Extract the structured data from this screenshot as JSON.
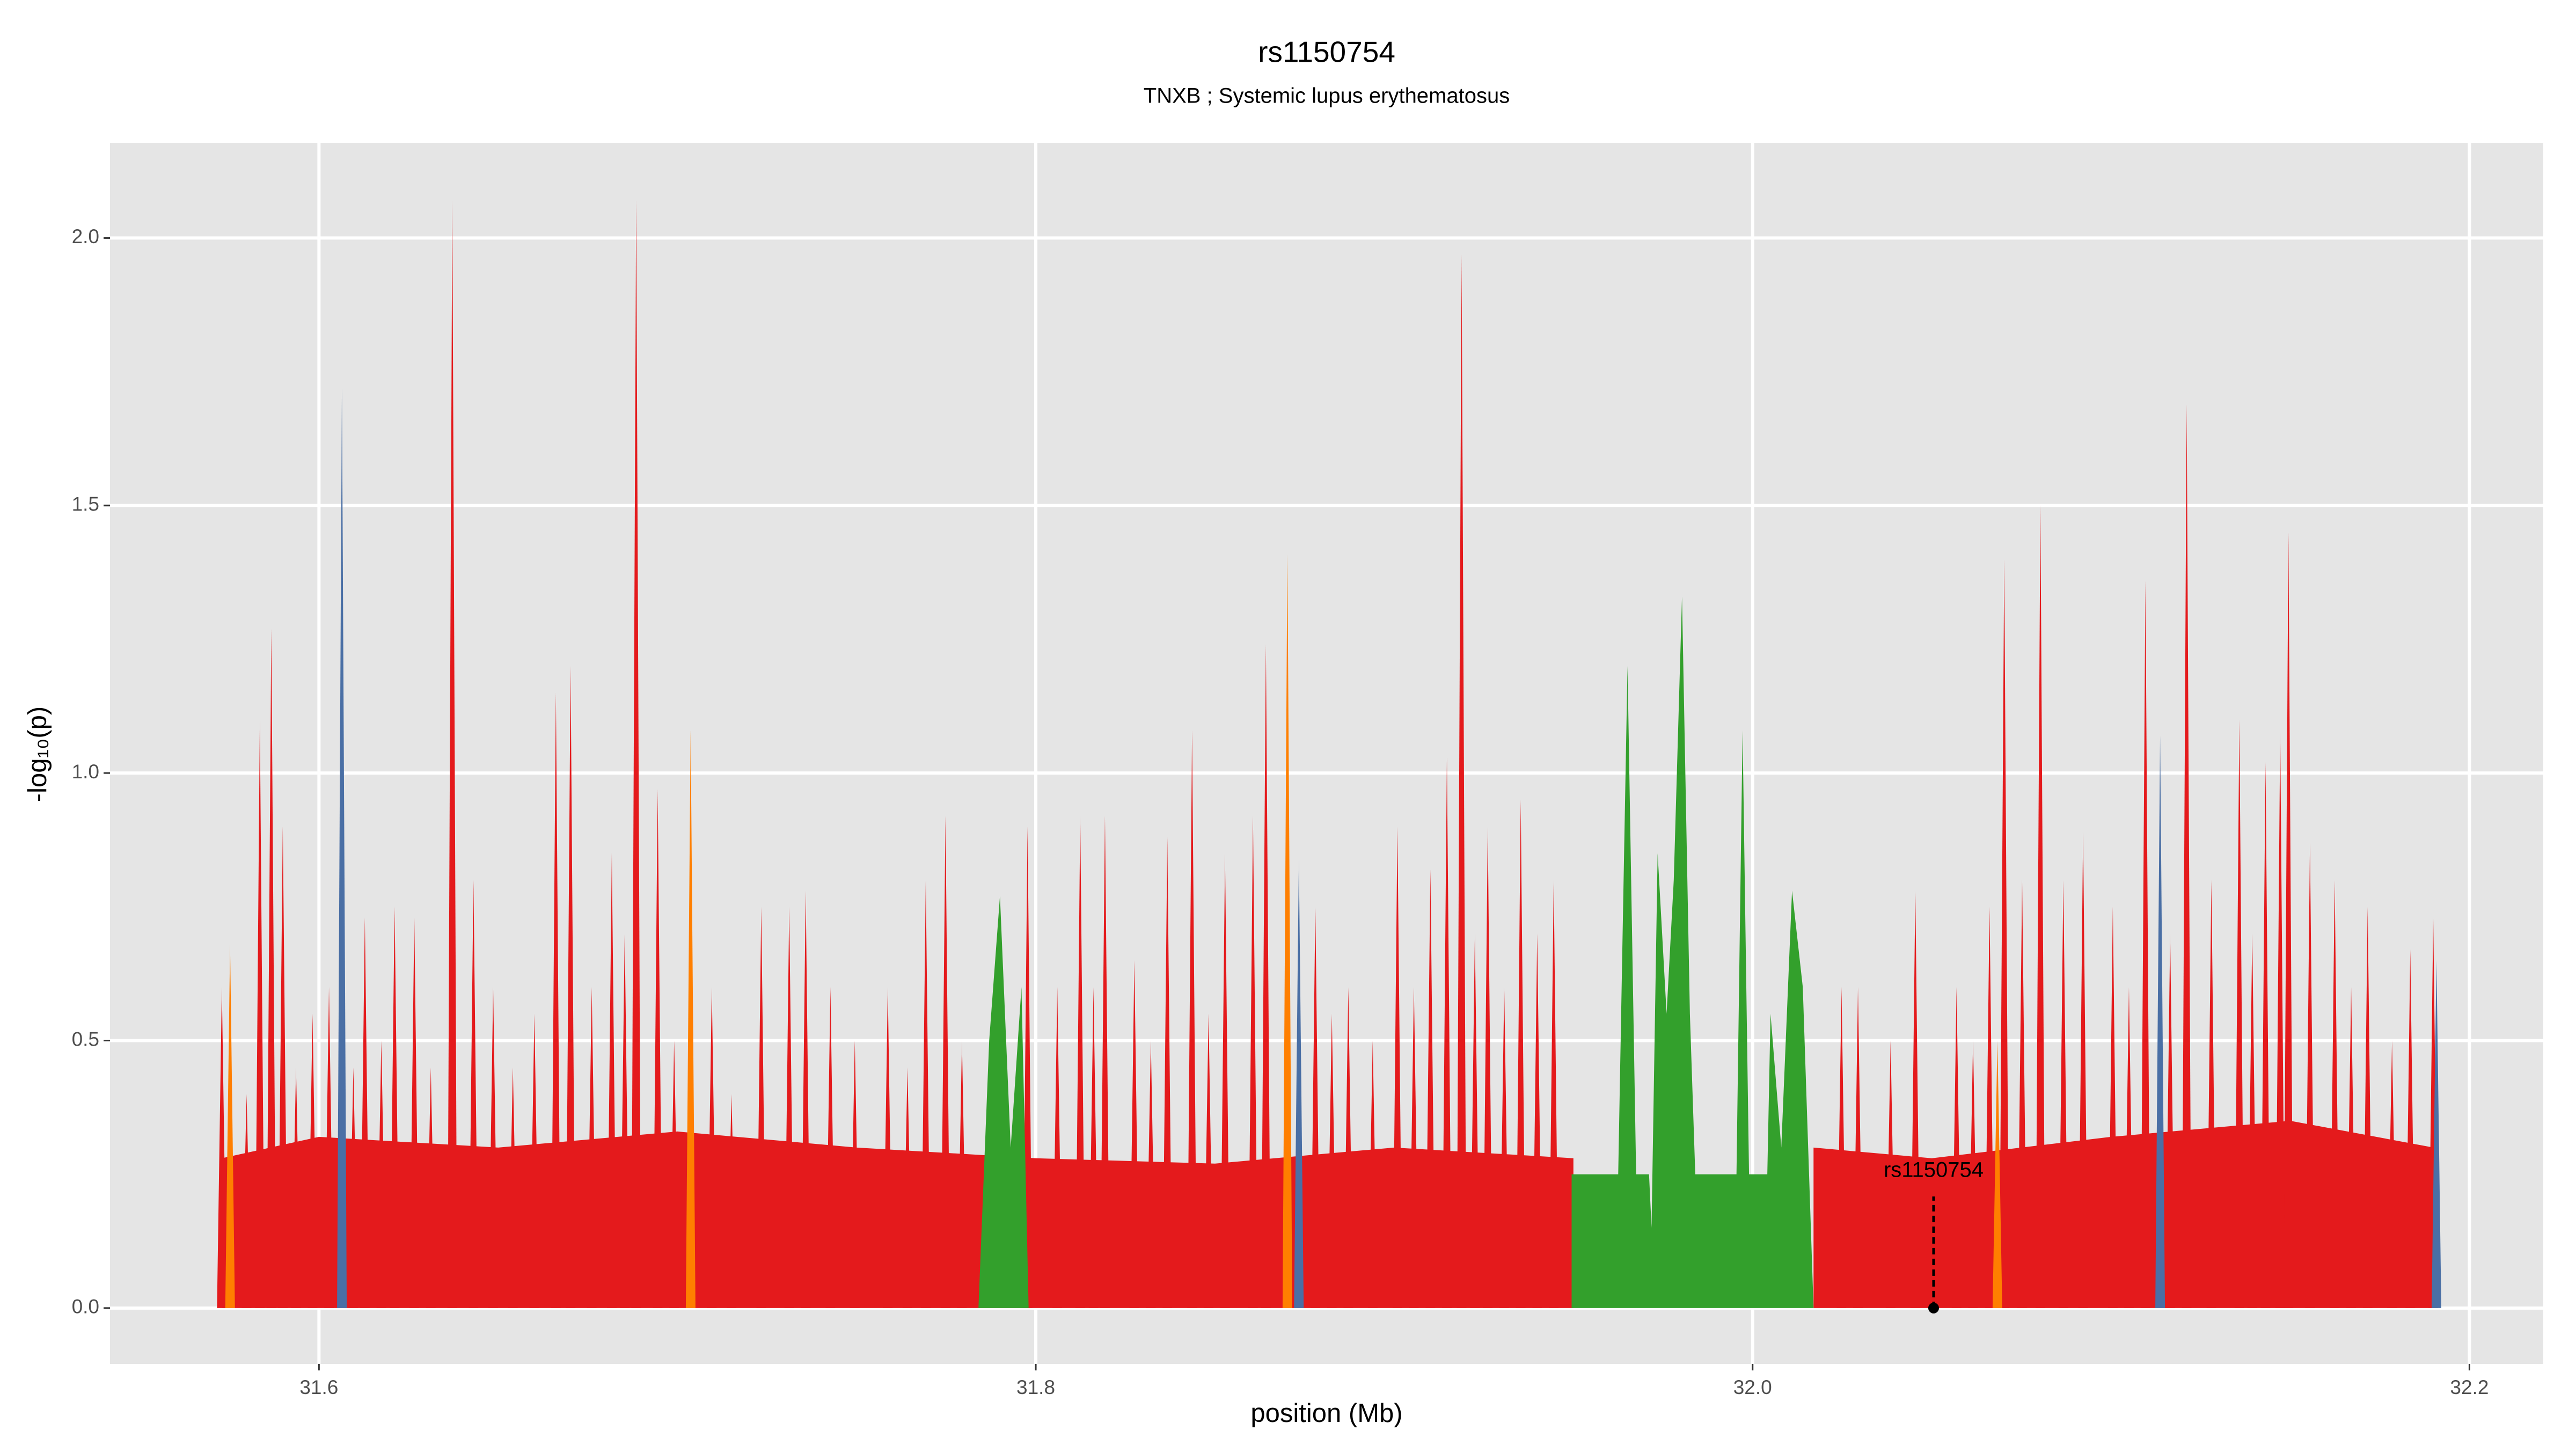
{
  "chart_data": {
    "type": "spike",
    "title": "rs1150754",
    "subtitle": "TNXB ; Systemic lupus erythematosus",
    "x_label": "position (Mb)",
    "y_label": "-log₁₀(p)",
    "xlim": [
      31.5417,
      32.2206
    ],
    "ylim": [
      -0.1045,
      2.178
    ],
    "xticks": [
      31.6,
      31.8,
      {
        "value": 32,
        "label": "32.0"
      },
      32.2
    ],
    "yticks": [
      {
        "value": 0,
        "label": "0.0"
      },
      0.5,
      {
        "value": 1,
        "label": "1.0"
      },
      1.5,
      {
        "value": 2,
        "label": "2.0"
      }
    ],
    "grid": true,
    "series": [
      {
        "type": "area",
        "color": "#e41a1c",
        "x": [
          31.5729,
          31.5729,
          31.6,
          31.65,
          31.7,
          31.75,
          31.8,
          31.85,
          31.9,
          31.95,
          31.95,
          null,
          32.017,
          32.017,
          32.05,
          32.1,
          32.15,
          32.19,
          32.19
        ],
        "values": [
          0,
          0.28,
          0.32,
          0.3,
          0.33,
          0.3,
          0.28,
          0.27,
          0.3,
          0.28,
          0,
          null,
          0,
          0.3,
          0.28,
          0.32,
          0.35,
          0.3,
          0
        ]
      },
      {
        "type": "spike",
        "color": "#e41a1c",
        "x": [
          31.5729,
          31.5798,
          31.5835,
          31.5867,
          31.5899,
          31.5936,
          31.5982,
          31.6028,
          31.6096,
          31.6128,
          31.6174,
          31.6211,
          31.6266,
          31.6312,
          31.6372,
          31.6431,
          31.6486,
          31.6541,
          31.6601,
          31.6661,
          31.6702,
          31.6761,
          31.6817,
          31.6853,
          31.6885,
          31.6945,
          31.6991,
          31.7096,
          31.7151,
          31.7234,
          31.7312,
          31.7358,
          31.7427,
          31.7495,
          31.7587,
          31.7642,
          31.7693,
          31.7748,
          31.7794,
          31.7977,
          31.806,
          31.8124,
          31.8161,
          31.8193,
          31.8275,
          31.8321,
          31.8367,
          31.8436,
          31.8482,
          31.8528,
          31.8606,
          31.8642,
          31.878,
          31.8826,
          31.8872,
          31.894,
          31.9009,
          31.9055,
          31.9101,
          31.9147,
          31.9188,
          31.9225,
          31.9261,
          31.9307,
          31.9353,
          31.9399,
          31.9445,
          32.0248,
          32.0294,
          32.0385,
          32.0454,
          32.0569,
          32.0615,
          32.0661,
          32.0702,
          32.0752,
          32.0803,
          32.0867,
          32.0922,
          32.1005,
          32.105,
          32.1096,
          32.1165,
          32.1211,
          32.128,
          32.1358,
          32.1394,
          32.1431,
          32.1472,
          32.1495,
          32.1555,
          32.1624,
          32.167,
          32.1716,
          32.1784,
          32.1835,
          32.1899
        ],
        "values": [
          0.6,
          0.4,
          1.1,
          1.27,
          0.9,
          0.45,
          0.55,
          0.6,
          0.45,
          0.73,
          0.5,
          0.75,
          0.73,
          0.45,
          2.07,
          0.8,
          0.6,
          0.45,
          0.55,
          1.15,
          1.2,
          0.6,
          0.85,
          0.7,
          2.07,
          0.97,
          0.5,
          0.6,
          0.4,
          0.75,
          0.75,
          0.78,
          0.6,
          0.5,
          0.6,
          0.45,
          0.8,
          0.92,
          0.5,
          0.9,
          0.6,
          0.92,
          0.6,
          0.92,
          0.65,
          0.5,
          0.88,
          1.08,
          0.55,
          0.85,
          0.92,
          1.24,
          0.75,
          0.55,
          0.6,
          0.5,
          0.9,
          0.6,
          0.82,
          1.03,
          1.97,
          0.7,
          0.9,
          0.6,
          0.95,
          0.7,
          0.8,
          0.6,
          0.6,
          0.5,
          0.78,
          0.6,
          0.5,
          0.75,
          1.4,
          0.8,
          1.5,
          0.8,
          0.89,
          0.75,
          0.6,
          1.36,
          0.7,
          1.69,
          0.8,
          1.1,
          0.7,
          1.02,
          1.08,
          1.45,
          0.87,
          0.8,
          0.6,
          0.75,
          0.5,
          0.67,
          0.73
        ]
      },
      {
        "type": "area",
        "color": "#33a02c",
        "x": [
          31.784,
          31.787,
          31.79,
          31.793,
          31.796,
          31.798,
          null,
          31.9495,
          31.9495,
          31.9625,
          31.9651,
          31.9675,
          31.9711,
          31.9718,
          31.9735,
          31.976,
          31.978,
          31.9803,
          31.9825,
          31.984,
          31.9955,
          31.9972,
          31.999,
          32.0041,
          32.005,
          32.008,
          32.011,
          32.014,
          32.017
        ],
        "values": [
          0,
          0.5,
          0.77,
          0.3,
          0.6,
          0,
          null,
          0,
          0.25,
          0.25,
          1.2,
          0.25,
          0.25,
          0.15,
          0.85,
          0.55,
          0.8,
          1.33,
          0.55,
          0.25,
          0.25,
          1.08,
          0.25,
          0.25,
          0.55,
          0.3,
          0.78,
          0.6,
          0
        ]
      },
      {
        "type": "spike",
        "color": "#ff7f00",
        "x": [
          31.5752,
          31.7037,
          31.8702,
          32.0683
        ],
        "values": [
          0.68,
          1.08,
          1.41,
          0.5
        ]
      },
      {
        "type": "spike",
        "color": "#4a6fa5",
        "x": [
          31.6064,
          31.8734,
          32.1137,
          32.1908
        ],
        "values": [
          1.72,
          0.84,
          1.07,
          0.65
        ]
      }
    ],
    "annotations": [
      {
        "text": "rs1150754",
        "x": 32.0505,
        "y": 0
      }
    ]
  }
}
